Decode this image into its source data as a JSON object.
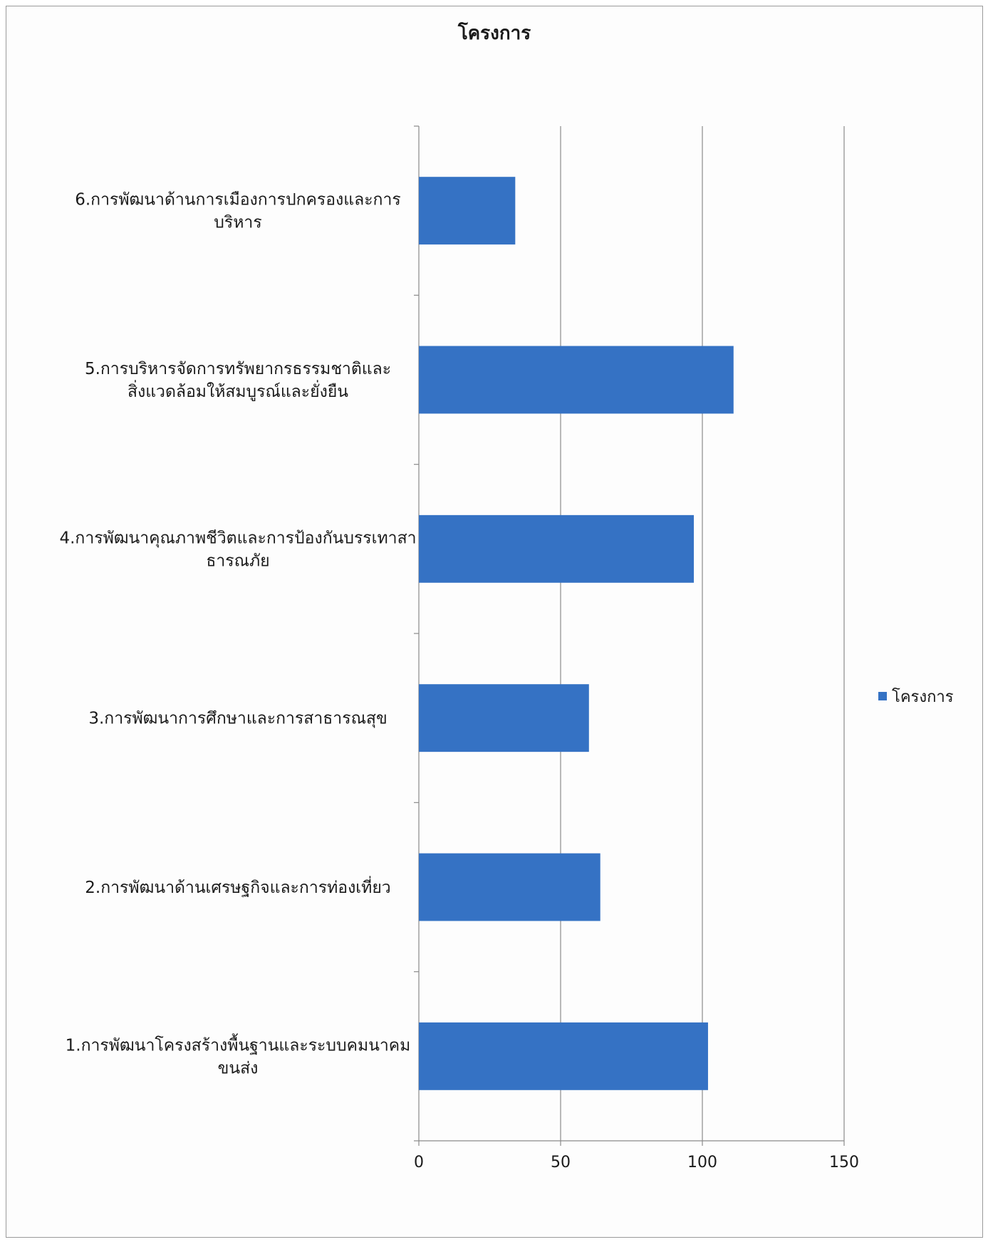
{
  "chart_data": {
    "type": "bar",
    "orientation": "horizontal",
    "title": "โครงการ",
    "categories": [
      [
        "1.การพัฒนาโครงสร้างพื้นฐานและระบบคมนาคม",
        "ขนส่ง"
      ],
      [
        "2.การพัฒนาด้านเศรษฐกิจและการท่องเที่ยว"
      ],
      [
        "3.การพัฒนาการศึกษาและการสาธารณสุข"
      ],
      [
        "4.การพัฒนาคุณภาพชีวิตและการป้องกันบรรเทาสา",
        "ธารณภัย"
      ],
      [
        "5.การบริหารจัดการทรัพยากรธรรมชาติและ",
        "สิ่งแวดล้อมให้สมบูรณ์และยั่งยืน"
      ],
      [
        "6.การพัฒนาด้านการเมืองการปกครองและการ",
        "บริหาร"
      ]
    ],
    "series": [
      {
        "name": "โครงการ",
        "color": "#3572C4",
        "values": [
          102,
          64,
          60,
          97,
          111,
          34
        ]
      }
    ],
    "xlim": [
      0,
      150
    ],
    "xticks": [
      "0",
      "50",
      "100",
      "150"
    ],
    "xlabel": "",
    "ylabel": "",
    "grid": "vertical",
    "legend": "right"
  }
}
